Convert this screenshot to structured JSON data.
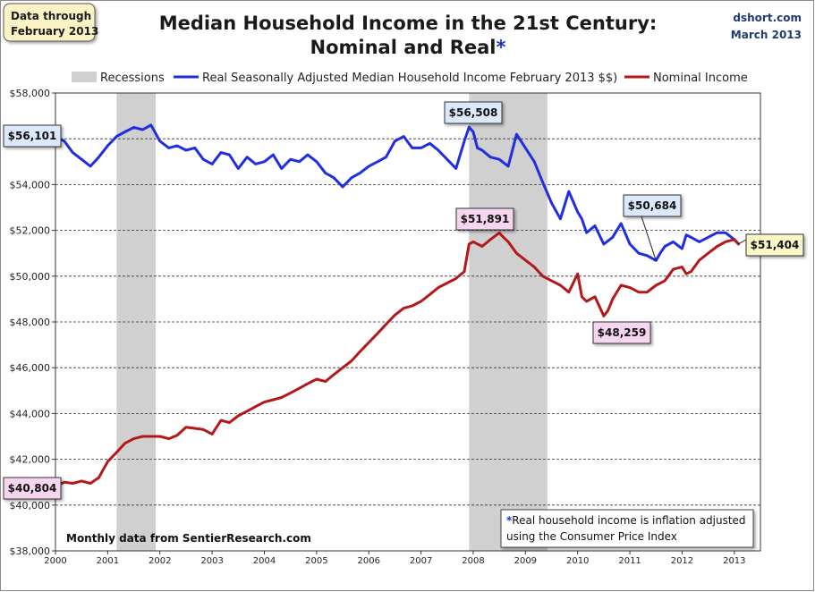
{
  "chart_data": {
    "type": "line",
    "title_line1": "Median Household Income in the 21st Century:",
    "title_line2": "Nominal and Real",
    "title_star": "*",
    "top_left_note": [
      "Data through",
      "February 2013"
    ],
    "top_right_note": [
      "dshort.com",
      "March 2013"
    ],
    "legend": {
      "placement": "top",
      "recessions": "Recessions",
      "real": "Real Seasonally Adjusted Median Household Income February 2013 $$)",
      "nominal": "Nominal Income"
    },
    "ylim": [
      38000,
      58000
    ],
    "y_ticks": [
      38000,
      40000,
      42000,
      44000,
      46000,
      48000,
      50000,
      52000,
      54000,
      56000,
      58000
    ],
    "y_tick_labels": [
      "$38,000",
      "$40,000",
      "$42,000",
      "$44,000",
      "$46,000",
      "$48,000",
      "$50,000",
      "$52,000",
      "$54,000",
      "$56,000",
      "$58,000"
    ],
    "xlim": [
      2000.0,
      2013.5
    ],
    "x_ticks": [
      2000,
      2001,
      2002,
      2003,
      2004,
      2005,
      2006,
      2007,
      2008,
      2009,
      2010,
      2011,
      2012,
      2013
    ],
    "x_tick_labels": [
      "2000",
      "2001",
      "2002",
      "2003",
      "2004",
      "2005",
      "2006",
      "2007",
      "2008",
      "2009",
      "2010",
      "2011",
      "2012",
      "2013"
    ],
    "grid": "horizontal dashed",
    "recessions": [
      {
        "start": 2001.17,
        "end": 2001.92
      },
      {
        "start": 2007.92,
        "end": 2009.42
      }
    ],
    "series": [
      {
        "name": "Real Seasonally Adjusted Median Household Income February 2013 $$)",
        "color": "#1e2ee0",
        "x": [
          2000.0,
          2000.17,
          2000.33,
          2000.5,
          2000.67,
          2000.83,
          2001.0,
          2001.17,
          2001.33,
          2001.5,
          2001.67,
          2001.83,
          2002.0,
          2002.17,
          2002.33,
          2002.5,
          2002.67,
          2002.83,
          2003.0,
          2003.17,
          2003.33,
          2003.5,
          2003.67,
          2003.83,
          2004.0,
          2004.17,
          2004.33,
          2004.5,
          2004.67,
          2004.83,
          2005.0,
          2005.17,
          2005.33,
          2005.5,
          2005.67,
          2005.83,
          2006.0,
          2006.17,
          2006.33,
          2006.5,
          2006.67,
          2006.83,
          2007.0,
          2007.17,
          2007.33,
          2007.5,
          2007.67,
          2007.83,
          2007.92,
          2008.0,
          2008.08,
          2008.17,
          2008.33,
          2008.5,
          2008.67,
          2008.83,
          2009.0,
          2009.17,
          2009.33,
          2009.5,
          2009.67,
          2009.83,
          2010.0,
          2010.08,
          2010.17,
          2010.33,
          2010.5,
          2010.67,
          2010.83,
          2011.0,
          2011.17,
          2011.33,
          2011.5,
          2011.58,
          2011.67,
          2011.83,
          2012.0,
          2012.08,
          2012.17,
          2012.33,
          2012.5,
          2012.67,
          2012.83,
          2013.0,
          2013.08
        ],
        "values": [
          56101,
          55900,
          55400,
          55100,
          54800,
          55200,
          55700,
          56100,
          56300,
          56500,
          56400,
          56600,
          55900,
          55600,
          55700,
          55500,
          55600,
          55100,
          54900,
          55400,
          55300,
          54700,
          55200,
          54900,
          55000,
          55300,
          54700,
          55100,
          55000,
          55300,
          55000,
          54500,
          54300,
          53900,
          54300,
          54500,
          54800,
          55000,
          55200,
          55900,
          56100,
          55600,
          55600,
          55800,
          55500,
          55100,
          54700,
          55900,
          56508,
          56300,
          55600,
          55500,
          55200,
          55100,
          54800,
          56200,
          55600,
          55000,
          54100,
          53200,
          52500,
          53700,
          52800,
          52500,
          51900,
          52200,
          51400,
          51700,
          52300,
          51400,
          51000,
          50900,
          50684,
          51000,
          51300,
          51500,
          51200,
          51800,
          51700,
          51500,
          51700,
          51900,
          51900,
          51600,
          51404
        ]
      },
      {
        "name": "Nominal Income",
        "color": "#b41818",
        "x": [
          2000.0,
          2000.17,
          2000.33,
          2000.5,
          2000.67,
          2000.83,
          2001.0,
          2001.17,
          2001.33,
          2001.5,
          2001.67,
          2001.83,
          2002.0,
          2002.17,
          2002.33,
          2002.5,
          2002.67,
          2002.83,
          2003.0,
          2003.17,
          2003.33,
          2003.5,
          2003.67,
          2003.83,
          2004.0,
          2004.17,
          2004.33,
          2004.5,
          2004.67,
          2004.83,
          2005.0,
          2005.17,
          2005.33,
          2005.5,
          2005.67,
          2005.83,
          2006.0,
          2006.17,
          2006.33,
          2006.5,
          2006.67,
          2006.83,
          2007.0,
          2007.17,
          2007.33,
          2007.5,
          2007.67,
          2007.83,
          2007.92,
          2008.0,
          2008.17,
          2008.33,
          2008.5,
          2008.58,
          2008.67,
          2008.83,
          2009.0,
          2009.17,
          2009.33,
          2009.5,
          2009.67,
          2009.83,
          2010.0,
          2010.08,
          2010.17,
          2010.33,
          2010.5,
          2010.58,
          2010.67,
          2010.83,
          2011.0,
          2011.17,
          2011.33,
          2011.5,
          2011.67,
          2011.83,
          2012.0,
          2012.08,
          2012.17,
          2012.33,
          2012.5,
          2012.67,
          2012.83,
          2013.0,
          2013.08
        ],
        "values": [
          40804,
          41000,
          40950,
          41050,
          40950,
          41200,
          41900,
          42300,
          42700,
          42900,
          43000,
          43000,
          43000,
          42900,
          43050,
          43400,
          43350,
          43300,
          43100,
          43700,
          43600,
          43900,
          44100,
          44300,
          44500,
          44600,
          44700,
          44900,
          45100,
          45300,
          45500,
          45400,
          45700,
          46000,
          46300,
          46700,
          47100,
          47500,
          47900,
          48300,
          48600,
          48700,
          48900,
          49200,
          49500,
          49700,
          49900,
          50200,
          51400,
          51500,
          51300,
          51600,
          51891,
          51700,
          51500,
          51000,
          50700,
          50400,
          50000,
          49800,
          49600,
          49300,
          50100,
          49100,
          48900,
          49100,
          48259,
          48500,
          49000,
          49600,
          49500,
          49300,
          49300,
          49600,
          49800,
          50300,
          50400,
          50100,
          50200,
          50700,
          51000,
          51300,
          51500,
          51600,
          51404
        ]
      }
    ],
    "callouts": [
      {
        "label": "$56,101",
        "series": 0,
        "style": "blue"
      },
      {
        "label": "$56,508",
        "series": 0,
        "style": "blue"
      },
      {
        "label": "$50,684",
        "series": 0,
        "style": "blue"
      },
      {
        "label": "$51,891",
        "series": 1,
        "style": "pink"
      },
      {
        "label": "$48,259",
        "series": 1,
        "style": "pink"
      },
      {
        "label": "$40,804",
        "series": 1,
        "style": "pink"
      },
      {
        "label": "$51,404",
        "series": 0,
        "style": "yellow"
      }
    ],
    "source_note": "Monthly data from SentierResearch.com",
    "footnote_star": "*",
    "footnote_line1": "Real household  income is inflation adjusted",
    "footnote_line2": "using  the Consumer Price Index",
    "colors": {
      "real": "#1e2ee0",
      "nominal": "#b41818",
      "recession": "#d0d0d0",
      "callout_blue": "#dce8fb",
      "callout_pink": "#f6d6ef",
      "callout_yellow": "#fbf7c6",
      "note_box": "#fbf3c5"
    }
  }
}
